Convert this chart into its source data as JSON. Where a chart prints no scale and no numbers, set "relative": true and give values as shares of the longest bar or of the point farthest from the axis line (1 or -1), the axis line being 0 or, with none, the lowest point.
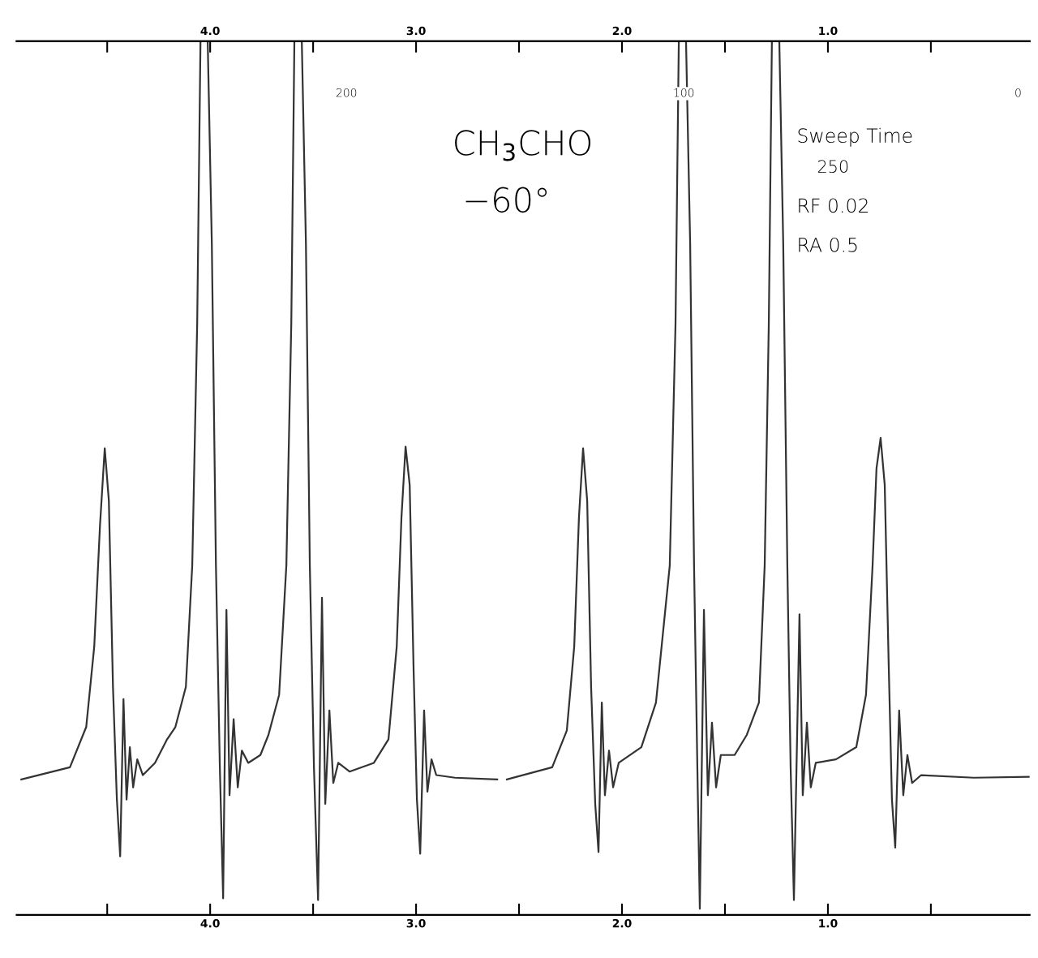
{
  "chart_data": {
    "type": "line",
    "relative": true,
    "xlim": [
      4.94,
      0.02
    ],
    "xticks": [
      {
        "value": 4.5,
        "label": null
      },
      {
        "value": 4.0,
        "label": "4.0"
      },
      {
        "value": 3.5,
        "label": null
      },
      {
        "value": 3.0,
        "label": "3.0"
      },
      {
        "value": 2.5,
        "label": null
      },
      {
        "value": 2.0,
        "label": "2.0"
      },
      {
        "value": 1.5,
        "label": null
      },
      {
        "value": 1.0,
        "label": "1.0"
      },
      {
        "value": 0.5,
        "label": null
      }
    ],
    "x2lim": [
      4.94,
      0.02
    ],
    "x2ticks": [
      {
        "value": 4.5,
        "label": null
      },
      {
        "value": 4.0,
        "label": "4.0"
      },
      {
        "value": 3.5,
        "label": null
      },
      {
        "value": 3.0,
        "label": "3.0"
      },
      {
        "value": 2.5,
        "label": null
      },
      {
        "value": 2.0,
        "label": "2.0"
      },
      {
        "value": 1.5,
        "label": null
      },
      {
        "value": 1.0,
        "label": "1.0"
      },
      {
        "value": 0.5,
        "label": null
      }
    ],
    "grid": false,
    "legend": false,
    "marker": "none",
    "line_style": "solid",
    "annotations": [
      "CH$_{3}$CHO",
      "−60°",
      "Sweep Time",
      "250",
      "RF 0.02",
      "RA 0.5",
      "200",
      "100",
      "0"
    ],
    "series": [
      {
        "color": "#333333",
        "x": [
          4.917,
          4.681,
          4.602,
          4.563,
          4.535,
          4.512,
          4.492,
          4.472,
          4.453,
          4.437,
          4.421,
          4.406,
          4.39,
          4.374,
          4.354,
          4.327,
          4.268,
          4.209,
          4.169,
          4.118,
          4.087,
          4.063,
          4.047,
          4.012,
          3.992,
          3.972,
          3.953,
          3.937,
          3.921,
          3.906,
          3.886,
          3.866,
          3.846,
          3.815,
          3.756,
          3.717,
          3.665,
          3.63,
          3.606,
          3.591,
          3.555,
          3.535,
          3.516,
          3.496,
          3.476,
          3.457,
          3.441,
          3.421,
          3.402,
          3.378,
          3.323,
          3.205,
          3.134,
          3.094,
          3.071,
          3.051,
          3.031,
          3.012,
          2.996,
          2.98,
          2.961,
          2.945,
          2.925,
          2.902,
          2.811,
          2.606,
          2.583,
          2.559,
          2.339,
          2.268,
          2.232,
          2.209,
          2.189,
          2.169,
          2.15,
          2.13,
          2.114,
          2.098,
          2.083,
          2.063,
          2.043,
          2.016,
          1.906,
          1.835,
          1.768,
          1.74,
          1.724,
          1.689,
          1.669,
          1.65,
          1.634,
          1.622,
          1.602,
          1.583,
          1.563,
          1.543,
          1.52,
          1.453,
          1.394,
          1.335,
          1.307,
          1.287,
          1.272,
          1.236,
          1.217,
          1.197,
          1.181,
          1.165,
          1.138,
          1.122,
          1.102,
          1.083,
          1.059,
          0.961,
          0.862,
          0.815,
          0.783,
          0.764,
          0.744,
          0.724,
          0.705,
          0.689,
          0.673,
          0.654,
          0.634,
          0.614,
          0.591,
          0.547,
          0.291,
          0.024
        ],
        "values": [
          0.155,
          0.169,
          0.215,
          0.307,
          0.446,
          0.534,
          0.474,
          0.261,
          0.132,
          0.067,
          0.247,
          0.132,
          0.192,
          0.146,
          0.178,
          0.16,
          0.174,
          0.201,
          0.215,
          0.261,
          0.4,
          0.677,
          1.0,
          1.0,
          0.769,
          0.4,
          0.169,
          0.019,
          0.349,
          0.137,
          0.224,
          0.146,
          0.188,
          0.174,
          0.183,
          0.206,
          0.252,
          0.4,
          0.677,
          1.0,
          1.0,
          0.769,
          0.4,
          0.169,
          0.017,
          0.363,
          0.127,
          0.234,
          0.151,
          0.174,
          0.164,
          0.174,
          0.201,
          0.307,
          0.455,
          0.536,
          0.492,
          0.28,
          0.132,
          0.07,
          0.234,
          0.141,
          0.178,
          0.16,
          0.157,
          0.155,
          null,
          0.155,
          0.169,
          0.211,
          0.307,
          0.455,
          0.534,
          0.474,
          0.261,
          0.127,
          0.072,
          0.243,
          0.137,
          0.188,
          0.146,
          0.174,
          0.192,
          0.243,
          0.4,
          0.677,
          1.0,
          1.0,
          0.769,
          0.4,
          0.169,
          0.007,
          0.349,
          0.137,
          0.22,
          0.146,
          0.183,
          0.183,
          0.206,
          0.243,
          0.4,
          0.677,
          1.0,
          1.0,
          0.769,
          0.4,
          0.169,
          0.017,
          0.344,
          0.137,
          0.22,
          0.146,
          0.174,
          0.178,
          0.192,
          0.252,
          0.4,
          0.511,
          0.546,
          0.492,
          0.289,
          0.132,
          0.077,
          0.234,
          0.137,
          0.183,
          0.151,
          0.16,
          0.157,
          0.158
        ]
      }
    ]
  }
}
